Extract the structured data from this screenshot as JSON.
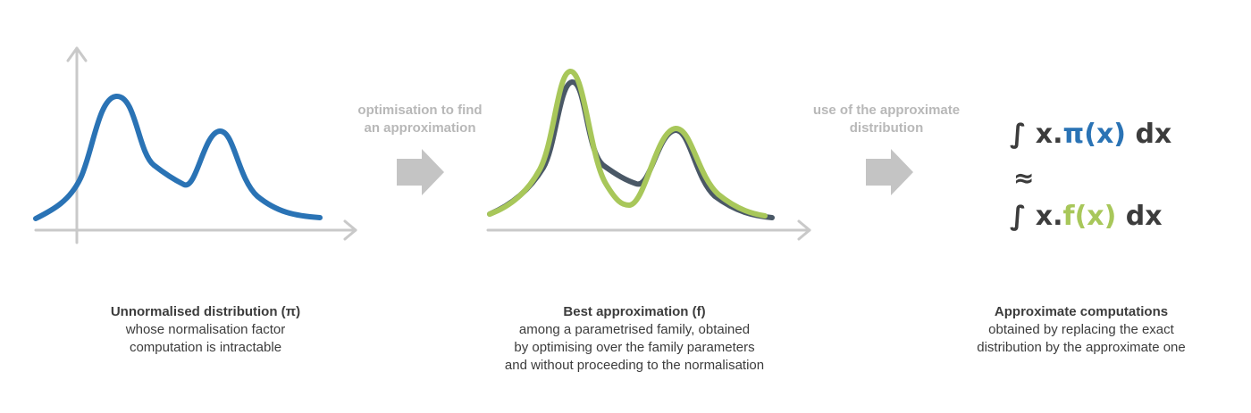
{
  "colors": {
    "axis": "#c9c9c9",
    "pi_curve": "#2a73b5",
    "f_curve": "#a8c75a",
    "pi_curve_dark": "#4a5866",
    "arrow": "#c4c4c4",
    "step_text": "#b8b8b8",
    "text": "#3c3c3c"
  },
  "steps": [
    {
      "label_line1": "optimisation to find",
      "label_line2": "an approximation"
    },
    {
      "label_line1": "use of the approximate",
      "label_line2": "distribution"
    }
  ],
  "panels": [
    {
      "title": "Unnormalised distribution (π)",
      "lines": [
        "whose normalisation factor",
        "computation is intractable"
      ]
    },
    {
      "title": "Best approximation (f)",
      "lines": [
        "among a parametrised family, obtained",
        "by optimising over the family parameters",
        "and without proceeding to the normalisation"
      ]
    },
    {
      "title": "Approximate computations",
      "lines": [
        "obtained by replacing the exact",
        "distribution by the approximate one"
      ]
    }
  ],
  "formula": {
    "line1_prefix": "∫ x.",
    "line1_func": "π",
    "line1_arg": "(x)",
    "line1_suffix": " dx",
    "approx_symbol": "≈",
    "line2_prefix": "∫ x.",
    "line2_func": "f",
    "line2_arg": "(x)",
    "line2_suffix": " dx"
  }
}
